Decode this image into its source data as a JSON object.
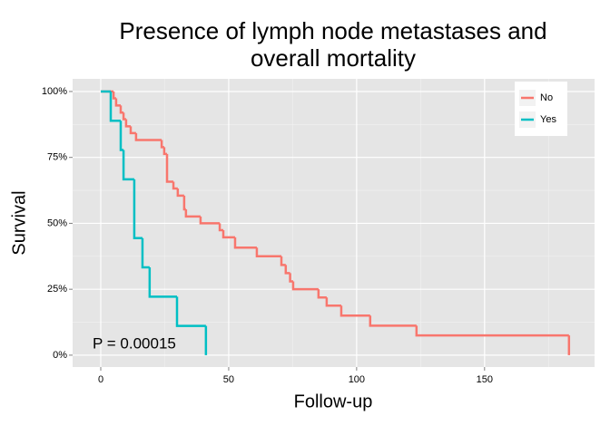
{
  "chart_data": {
    "type": "step",
    "title": [
      "Presence of lymph node metastases and",
      "overall mortality"
    ],
    "x_label": "Follow-up",
    "y_label": "Survival",
    "annotation": "P = 0.00015",
    "xlim": [
      -11,
      193
    ],
    "xticks": [
      0,
      50,
      100,
      150
    ],
    "ylim": [
      -4.5,
      104.8
    ],
    "yticks": [
      {
        "value": 0,
        "label": "0%"
      },
      {
        "value": 25,
        "label": "25%"
      },
      {
        "value": 50,
        "label": "50%"
      },
      {
        "value": 75,
        "label": "75%"
      },
      {
        "value": 100,
        "label": "100%"
      }
    ],
    "grid": true,
    "legend": "top-right",
    "series": [
      {
        "name": "No",
        "color": "#F8766D",
        "x": [
          0,
          5,
          6,
          7.8,
          8.9,
          9.9,
          11.7,
          13.8,
          23.8,
          24.8,
          25.9,
          28.4,
          30.1,
          32.6,
          33.3,
          39,
          46.5,
          47.9,
          52.5,
          61,
          70.6,
          72.3,
          74,
          75.2,
          85.1,
          88.3,
          94,
          105.3,
          123.4,
          183
        ],
        "values": [
          100,
          97.4,
          94.7,
          92,
          89.5,
          86.8,
          84.2,
          81.6,
          78.9,
          76.3,
          65.8,
          63.2,
          60.5,
          55.3,
          52.6,
          50,
          47.4,
          44.7,
          40.8,
          37.5,
          34.2,
          31.1,
          28,
          25,
          21.9,
          18.8,
          15,
          11.2,
          7.5,
          0
        ]
      },
      {
        "name": "Yes",
        "color": "#00BFC4",
        "x": [
          0,
          3.9,
          7.8,
          8.9,
          13.1,
          16.3,
          19.1,
          29.8,
          41.1
        ],
        "values": [
          100,
          88.9,
          77.8,
          66.7,
          44.4,
          33.3,
          22.2,
          11.1,
          0
        ]
      }
    ]
  }
}
